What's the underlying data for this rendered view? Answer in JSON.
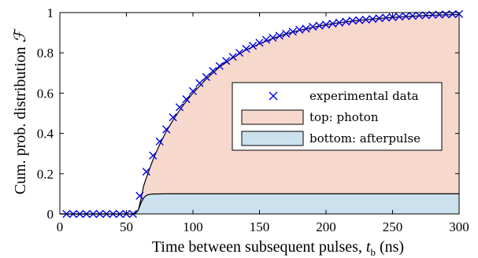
{
  "chart_data": {
    "type": "line",
    "xlabel": "Time between subsequent pulses, ",
    "xlabel_var": "t",
    "xlabel_sub": "b",
    "xlabel_unit": " (ns)",
    "ylabel": "Cum. prob. distribution ",
    "ylabel_symbol": "ℱ",
    "xlim": [
      0,
      300
    ],
    "ylim": [
      0,
      1
    ],
    "x_ticks": [
      0,
      50,
      100,
      150,
      200,
      250,
      300
    ],
    "y_ticks": [
      0,
      0.2,
      0.4,
      0.6,
      0.8,
      1
    ],
    "x_tick_labels": [
      "0",
      "50",
      "100",
      "150",
      "200",
      "250",
      "300"
    ],
    "y_tick_labels": [
      "0",
      "0.2",
      "0.4",
      "0.6",
      "0.8",
      "1"
    ],
    "grid": false,
    "legend_position": "center-right",
    "legend": [
      {
        "label": "experimental data",
        "kind": "marker"
      },
      {
        "label": "top: photon",
        "kind": "patch",
        "color": "#f6d9cc"
      },
      {
        "label": "bottom: afterpulse",
        "kind": "patch",
        "color": "#cce1ee"
      }
    ],
    "colors": {
      "photon_fill": "#f6d9cc",
      "afterpulse_fill": "#cce1ee",
      "marker": "#0000e6",
      "fit_line": "#000000"
    },
    "series": [
      {
        "name": "experimental data",
        "x": [
          5,
          10,
          15,
          20,
          25,
          30,
          35,
          40,
          45,
          50,
          55,
          60,
          65,
          70,
          75,
          80,
          85,
          90,
          95,
          100,
          105,
          110,
          115,
          120,
          125,
          130,
          135,
          140,
          145,
          150,
          155,
          160,
          165,
          170,
          175,
          180,
          185,
          190,
          195,
          200,
          205,
          210,
          215,
          220,
          225,
          230,
          235,
          240,
          245,
          250,
          255,
          260,
          265,
          270,
          275,
          280,
          285,
          290,
          295,
          300
        ],
        "y": [
          0,
          0,
          0,
          0,
          0,
          0,
          0,
          0,
          0,
          0,
          0,
          0.09,
          0.21,
          0.29,
          0.36,
          0.42,
          0.48,
          0.53,
          0.57,
          0.61,
          0.65,
          0.68,
          0.71,
          0.735,
          0.76,
          0.78,
          0.8,
          0.82,
          0.835,
          0.85,
          0.865,
          0.875,
          0.885,
          0.895,
          0.905,
          0.915,
          0.92,
          0.93,
          0.935,
          0.94,
          0.945,
          0.95,
          0.955,
          0.96,
          0.962,
          0.965,
          0.968,
          0.972,
          0.975,
          0.977,
          0.98,
          0.982,
          0.984,
          0.986,
          0.987,
          0.989,
          0.99,
          0.991,
          0.992,
          0.993
        ]
      },
      {
        "name": "fit",
        "x": [
          0,
          55,
          57,
          59,
          61,
          63,
          65,
          70,
          75,
          80,
          85,
          90,
          95,
          100,
          110,
          120,
          130,
          140,
          150,
          160,
          170,
          180,
          190,
          200,
          210,
          220,
          230,
          240,
          250,
          260,
          270,
          280,
          290,
          300
        ],
        "y": [
          0,
          0,
          0.004,
          0.02,
          0.075,
          0.14,
          0.18,
          0.27,
          0.345,
          0.41,
          0.465,
          0.515,
          0.56,
          0.6,
          0.67,
          0.73,
          0.775,
          0.815,
          0.845,
          0.872,
          0.894,
          0.912,
          0.927,
          0.94,
          0.95,
          0.958,
          0.965,
          0.971,
          0.976,
          0.98,
          0.984,
          0.987,
          0.989,
          0.991
        ]
      },
      {
        "name": "afterpulse",
        "x": [
          0,
          55,
          57,
          59,
          61,
          63,
          65,
          67,
          70,
          80,
          100,
          150,
          200,
          250,
          300
        ],
        "y": [
          0,
          0,
          0.004,
          0.02,
          0.055,
          0.08,
          0.092,
          0.097,
          0.099,
          0.1,
          0.1,
          0.1,
          0.1,
          0.1,
          0.1
        ]
      }
    ]
  }
}
